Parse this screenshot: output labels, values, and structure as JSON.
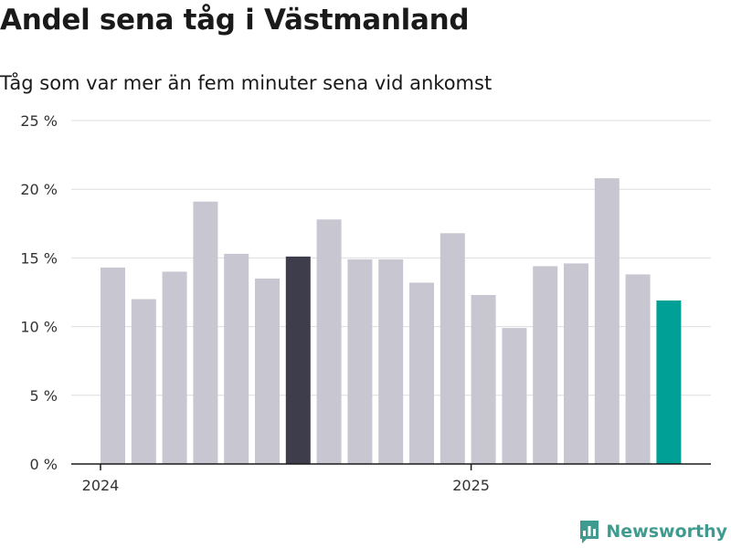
{
  "header": {
    "title": "Andel sena tåg i Västmanland",
    "subtitle": "Tåg som var mer än fem minuter sena vid ankomst"
  },
  "logo": {
    "text": "Newsworthy",
    "icon": "newsworthy-chart-icon",
    "color": "#3f9b8f"
  },
  "colors": {
    "default_bar": "#c8c7d1",
    "highlight_dark": "#3e3d4b",
    "highlight_latest": "#00a096",
    "grid": "#dddddd",
    "axis": "#1a1a1a"
  },
  "chart_data": {
    "type": "bar",
    "title": "Andel sena tåg i Västmanland",
    "subtitle": "Tåg som var mer än fem minuter sena vid ankomst",
    "ylim": [
      0,
      25
    ],
    "yticks": [
      0,
      5,
      10,
      15,
      20,
      25
    ],
    "ytick_labels": [
      "0 %",
      "5 %",
      "10 %",
      "15 %",
      "20 %",
      "25 %"
    ],
    "xtick_labels": [
      {
        "label": "2024",
        "at_bar": -0.5
      },
      {
        "label": "2025",
        "at_bar": 11.5
      }
    ],
    "grid": true,
    "bars": [
      {
        "value": 14.3,
        "style": "default"
      },
      {
        "value": 12.0,
        "style": "default"
      },
      {
        "value": 14.0,
        "style": "default"
      },
      {
        "value": 19.1,
        "style": "default"
      },
      {
        "value": 15.3,
        "style": "default"
      },
      {
        "value": 13.5,
        "style": "default"
      },
      {
        "value": 15.1,
        "style": "dark"
      },
      {
        "value": 17.8,
        "style": "default"
      },
      {
        "value": 14.9,
        "style": "default"
      },
      {
        "value": 14.9,
        "style": "default"
      },
      {
        "value": 13.2,
        "style": "default"
      },
      {
        "value": 16.8,
        "style": "default"
      },
      {
        "value": 12.3,
        "style": "default"
      },
      {
        "value": 9.9,
        "style": "default"
      },
      {
        "value": 14.4,
        "style": "default"
      },
      {
        "value": 14.6,
        "style": "default"
      },
      {
        "value": 20.8,
        "style": "default"
      },
      {
        "value": 13.8,
        "style": "default"
      },
      {
        "value": 11.9,
        "style": "latest"
      }
    ]
  }
}
